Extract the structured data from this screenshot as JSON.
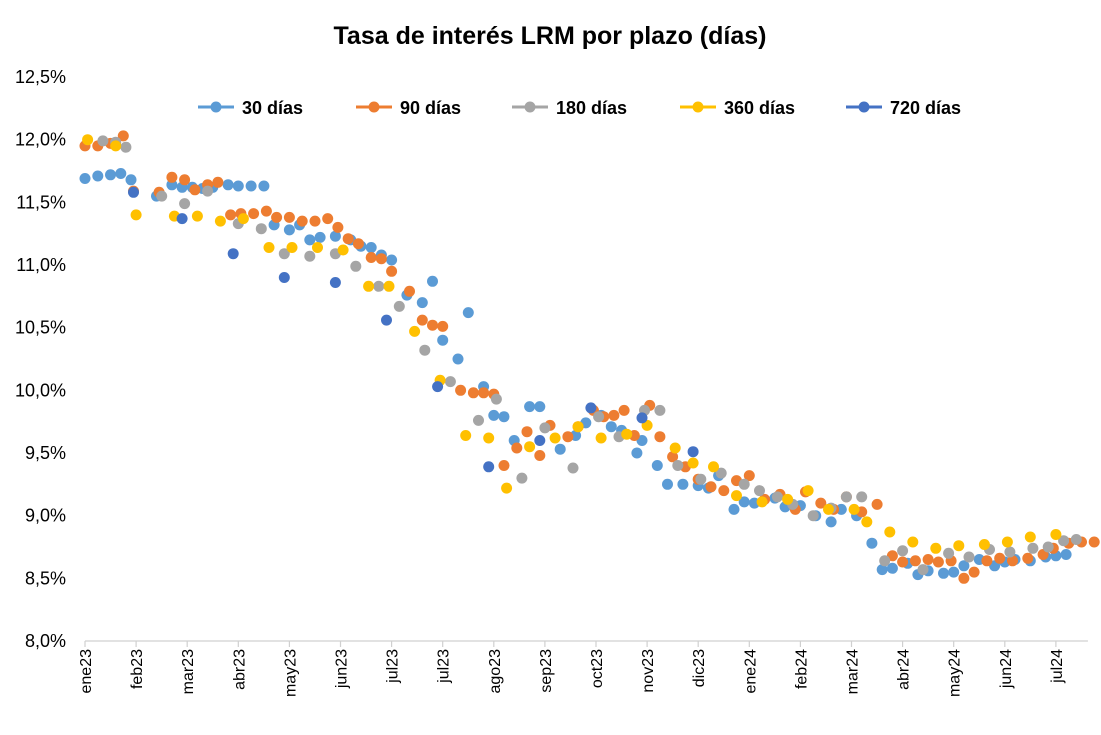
{
  "chart_data": {
    "type": "scatter",
    "title": "Tasa de interés LRM por plazo (días)",
    "xlabel": "",
    "ylabel": "",
    "ylim": [
      8.0,
      12.5
    ],
    "y_ticks": [
      8.0,
      8.5,
      9.0,
      9.5,
      10.0,
      10.5,
      11.0,
      11.5,
      12.0,
      12.5
    ],
    "y_tick_labels": [
      "8,0%",
      "8,5%",
      "9,0%",
      "9,5%",
      "10,0%",
      "10,5%",
      "11,0%",
      "11,5%",
      "12,0%",
      "12,5%"
    ],
    "x_tick_labels": [
      "ene23",
      "feb23",
      "mar23",
      "abr23",
      "may23",
      "jun23",
      "jul23",
      "jul23",
      "ago23",
      "sep23",
      "oct23",
      "nov23",
      "dic23",
      "ene24",
      "feb24",
      "mar24",
      "abr24",
      "may24",
      "jun24",
      "jul24"
    ],
    "grid": false,
    "legend_position": "top",
    "series": [
      {
        "name": "30 días",
        "color": "#5B9BD5",
        "points": [
          [
            0.0,
            11.69
          ],
          [
            0.25,
            11.71
          ],
          [
            0.5,
            11.72
          ],
          [
            0.7,
            11.73
          ],
          [
            0.9,
            11.68
          ],
          [
            1.4,
            11.55
          ],
          [
            1.7,
            11.64
          ],
          [
            1.9,
            11.62
          ],
          [
            2.1,
            11.62
          ],
          [
            2.3,
            11.61
          ],
          [
            2.5,
            11.62
          ],
          [
            2.8,
            11.64
          ],
          [
            3.0,
            11.63
          ],
          [
            3.25,
            11.63
          ],
          [
            3.5,
            11.63
          ],
          [
            3.7,
            11.32
          ],
          [
            4.0,
            11.28
          ],
          [
            4.2,
            11.32
          ],
          [
            4.4,
            11.2
          ],
          [
            4.6,
            11.22
          ],
          [
            4.9,
            11.23
          ],
          [
            5.2,
            11.2
          ],
          [
            5.4,
            11.15
          ],
          [
            5.6,
            11.14
          ],
          [
            5.8,
            11.08
          ],
          [
            6.0,
            11.04
          ],
          [
            6.3,
            10.76
          ],
          [
            6.6,
            10.7
          ],
          [
            6.8,
            10.87
          ],
          [
            7.0,
            10.4
          ],
          [
            7.3,
            10.25
          ],
          [
            7.5,
            10.62
          ],
          [
            7.8,
            10.03
          ],
          [
            8.0,
            9.8
          ],
          [
            8.2,
            9.79
          ],
          [
            8.4,
            9.6
          ],
          [
            8.7,
            9.87
          ],
          [
            8.9,
            9.87
          ],
          [
            9.3,
            9.53
          ],
          [
            9.6,
            9.64
          ],
          [
            9.8,
            9.74
          ],
          [
            10.1,
            9.8
          ],
          [
            10.3,
            9.71
          ],
          [
            10.5,
            9.68
          ],
          [
            10.8,
            9.5
          ],
          [
            10.9,
            9.6
          ],
          [
            11.2,
            9.4
          ],
          [
            11.4,
            9.25
          ],
          [
            11.7,
            9.25
          ],
          [
            12.0,
            9.24
          ],
          [
            12.2,
            9.22
          ],
          [
            12.4,
            9.32
          ],
          [
            12.7,
            9.05
          ],
          [
            12.9,
            9.11
          ],
          [
            13.1,
            9.1
          ],
          [
            13.5,
            9.14
          ],
          [
            13.7,
            9.07
          ],
          [
            14.0,
            9.08
          ],
          [
            14.3,
            9.0
          ],
          [
            14.6,
            8.95
          ],
          [
            14.8,
            9.05
          ],
          [
            15.1,
            9.0
          ],
          [
            15.4,
            8.78
          ],
          [
            15.6,
            8.57
          ],
          [
            15.8,
            8.58
          ],
          [
            16.1,
            8.62
          ],
          [
            16.3,
            8.53
          ],
          [
            16.5,
            8.56
          ],
          [
            16.8,
            8.54
          ],
          [
            17.0,
            8.55
          ],
          [
            17.2,
            8.6
          ],
          [
            17.5,
            8.65
          ],
          [
            17.8,
            8.6
          ],
          [
            18.0,
            8.63
          ],
          [
            18.2,
            8.65
          ],
          [
            18.5,
            8.64
          ],
          [
            18.8,
            8.67
          ],
          [
            19.0,
            8.68
          ],
          [
            19.2,
            8.69
          ]
        ]
      },
      {
        "name": "90 días",
        "color": "#ED7D31",
        "points": [
          [
            0.0,
            11.95
          ],
          [
            0.25,
            11.95
          ],
          [
            0.5,
            11.97
          ],
          [
            0.75,
            12.03
          ],
          [
            0.95,
            11.59
          ],
          [
            1.45,
            11.58
          ],
          [
            1.7,
            11.7
          ],
          [
            1.95,
            11.68
          ],
          [
            2.15,
            11.6
          ],
          [
            2.4,
            11.64
          ],
          [
            2.6,
            11.66
          ],
          [
            2.85,
            11.4
          ],
          [
            3.05,
            11.41
          ],
          [
            3.3,
            11.41
          ],
          [
            3.55,
            11.43
          ],
          [
            3.75,
            11.38
          ],
          [
            4.0,
            11.38
          ],
          [
            4.25,
            11.35
          ],
          [
            4.5,
            11.35
          ],
          [
            4.75,
            11.37
          ],
          [
            4.95,
            11.3
          ],
          [
            5.15,
            11.21
          ],
          [
            5.35,
            11.17
          ],
          [
            5.6,
            11.06
          ],
          [
            5.8,
            11.05
          ],
          [
            6.0,
            10.95
          ],
          [
            6.35,
            10.79
          ],
          [
            6.6,
            10.56
          ],
          [
            6.8,
            10.52
          ],
          [
            7.0,
            10.51
          ],
          [
            7.35,
            10.0
          ],
          [
            7.6,
            9.98
          ],
          [
            7.8,
            9.98
          ],
          [
            8.0,
            9.97
          ],
          [
            8.2,
            9.4
          ],
          [
            8.45,
            9.54
          ],
          [
            8.65,
            9.67
          ],
          [
            8.9,
            9.48
          ],
          [
            9.1,
            9.72
          ],
          [
            9.45,
            9.63
          ],
          [
            9.65,
            9.71
          ],
          [
            9.95,
            9.84
          ],
          [
            10.15,
            9.79
          ],
          [
            10.35,
            9.8
          ],
          [
            10.55,
            9.84
          ],
          [
            10.75,
            9.64
          ],
          [
            11.05,
            9.88
          ],
          [
            11.25,
            9.63
          ],
          [
            11.5,
            9.47
          ],
          [
            11.75,
            9.39
          ],
          [
            12.0,
            9.29
          ],
          [
            12.25,
            9.23
          ],
          [
            12.5,
            9.2
          ],
          [
            12.75,
            9.28
          ],
          [
            13.0,
            9.32
          ],
          [
            13.3,
            9.13
          ],
          [
            13.6,
            9.17
          ],
          [
            13.9,
            9.05
          ],
          [
            14.1,
            9.19
          ],
          [
            14.4,
            9.1
          ],
          [
            14.65,
            9.05
          ],
          [
            14.9,
            9.15
          ],
          [
            15.2,
            9.03
          ],
          [
            15.5,
            9.09
          ],
          [
            15.8,
            8.68
          ],
          [
            16.0,
            8.63
          ],
          [
            16.25,
            8.64
          ],
          [
            16.5,
            8.65
          ],
          [
            16.7,
            8.63
          ],
          [
            16.95,
            8.64
          ],
          [
            17.2,
            8.5
          ],
          [
            17.4,
            8.55
          ],
          [
            17.65,
            8.64
          ],
          [
            17.9,
            8.66
          ],
          [
            18.15,
            8.64
          ],
          [
            18.45,
            8.66
          ],
          [
            18.75,
            8.69
          ],
          [
            18.95,
            8.74
          ],
          [
            19.25,
            8.78
          ],
          [
            19.5,
            8.79
          ],
          [
            19.75,
            8.79
          ]
        ]
      },
      {
        "name": "180 días",
        "color": "#A5A5A5",
        "points": [
          [
            0.35,
            11.99
          ],
          [
            0.6,
            11.98
          ],
          [
            0.8,
            11.94
          ],
          [
            1.5,
            11.55
          ],
          [
            1.95,
            11.49
          ],
          [
            2.4,
            11.59
          ],
          [
            3.0,
            11.33
          ],
          [
            3.45,
            11.29
          ],
          [
            3.9,
            11.09
          ],
          [
            4.4,
            11.07
          ],
          [
            4.9,
            11.09
          ],
          [
            5.3,
            10.99
          ],
          [
            5.75,
            10.83
          ],
          [
            6.15,
            10.67
          ],
          [
            6.65,
            10.32
          ],
          [
            7.15,
            10.07
          ],
          [
            7.7,
            9.76
          ],
          [
            8.05,
            9.93
          ],
          [
            8.55,
            9.3
          ],
          [
            9.0,
            9.7
          ],
          [
            9.55,
            9.38
          ],
          [
            10.05,
            9.79
          ],
          [
            10.45,
            9.63
          ],
          [
            10.95,
            9.84
          ],
          [
            11.25,
            9.84
          ],
          [
            11.6,
            9.4
          ],
          [
            12.05,
            9.29
          ],
          [
            12.45,
            9.34
          ],
          [
            12.9,
            9.25
          ],
          [
            13.2,
            9.2
          ],
          [
            13.55,
            9.15
          ],
          [
            13.85,
            9.09
          ],
          [
            14.25,
            9.0
          ],
          [
            14.6,
            9.06
          ],
          [
            14.9,
            9.15
          ],
          [
            15.2,
            9.15
          ],
          [
            15.65,
            8.64
          ],
          [
            16.0,
            8.72
          ],
          [
            16.4,
            8.57
          ],
          [
            16.9,
            8.7
          ],
          [
            17.3,
            8.67
          ],
          [
            17.7,
            8.73
          ],
          [
            18.1,
            8.71
          ],
          [
            18.55,
            8.74
          ],
          [
            18.85,
            8.75
          ],
          [
            19.15,
            8.8
          ],
          [
            19.4,
            8.81
          ]
        ]
      },
      {
        "name": "360 días",
        "color": "#FFC000",
        "points": [
          [
            0.05,
            12.0
          ],
          [
            0.6,
            11.95
          ],
          [
            1.0,
            11.4
          ],
          [
            1.75,
            11.39
          ],
          [
            2.2,
            11.39
          ],
          [
            2.65,
            11.35
          ],
          [
            3.1,
            11.37
          ],
          [
            3.6,
            11.14
          ],
          [
            4.05,
            11.14
          ],
          [
            4.55,
            11.14
          ],
          [
            5.05,
            11.12
          ],
          [
            5.55,
            10.83
          ],
          [
            5.95,
            10.83
          ],
          [
            6.45,
            10.47
          ],
          [
            6.95,
            10.08
          ],
          [
            7.45,
            9.64
          ],
          [
            7.9,
            9.62
          ],
          [
            8.25,
            9.22
          ],
          [
            8.7,
            9.55
          ],
          [
            9.2,
            9.62
          ],
          [
            9.65,
            9.71
          ],
          [
            10.1,
            9.62
          ],
          [
            10.6,
            9.65
          ],
          [
            11.0,
            9.72
          ],
          [
            11.55,
            9.54
          ],
          [
            11.9,
            9.42
          ],
          [
            12.3,
            9.39
          ],
          [
            12.75,
            9.16
          ],
          [
            13.25,
            9.11
          ],
          [
            13.75,
            9.13
          ],
          [
            14.15,
            9.2
          ],
          [
            14.55,
            9.05
          ],
          [
            15.05,
            9.05
          ],
          [
            15.3,
            8.95
          ],
          [
            15.75,
            8.87
          ],
          [
            16.2,
            8.79
          ],
          [
            16.65,
            8.74
          ],
          [
            17.1,
            8.76
          ],
          [
            17.6,
            8.77
          ],
          [
            18.05,
            8.79
          ],
          [
            18.5,
            8.83
          ],
          [
            19.0,
            8.85
          ]
        ]
      },
      {
        "name": "720 días",
        "color": "#4472C4",
        "points": [
          [
            0.95,
            11.58
          ],
          [
            1.9,
            11.37
          ],
          [
            2.9,
            11.09
          ],
          [
            3.9,
            10.9
          ],
          [
            4.9,
            10.86
          ],
          [
            5.9,
            10.56
          ],
          [
            6.9,
            10.03
          ],
          [
            7.9,
            9.39
          ],
          [
            8.9,
            9.6
          ],
          [
            9.9,
            9.86
          ],
          [
            10.9,
            9.78
          ],
          [
            11.9,
            9.51
          ]
        ]
      }
    ]
  }
}
